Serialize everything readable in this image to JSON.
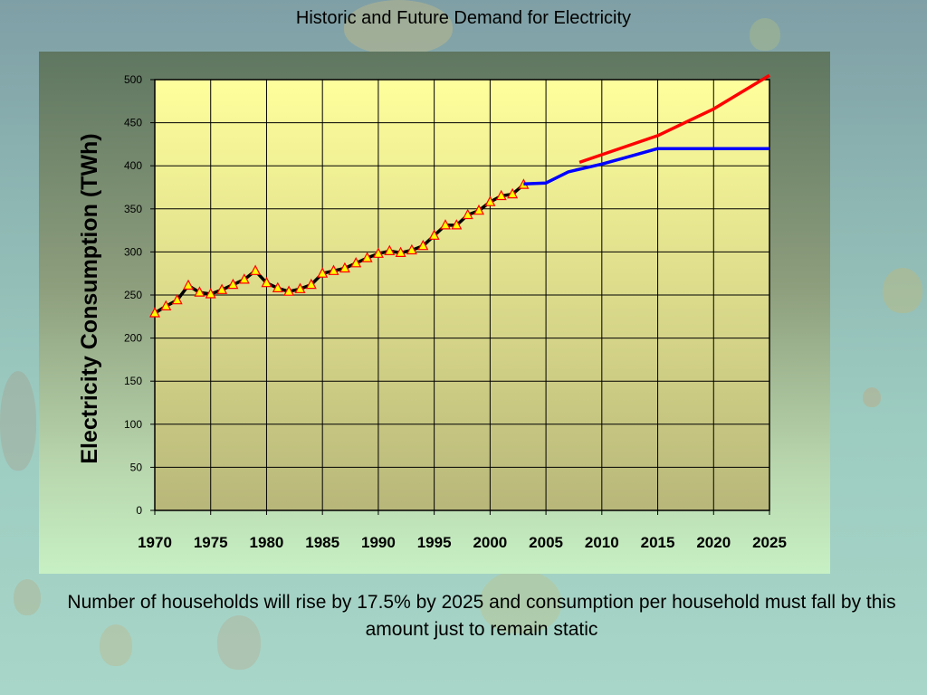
{
  "slide": {
    "title": "Historic and Future Demand for Electricity",
    "caption": "Number of households will rise by 17.5% by 2025 and consumption per household must fall by this amount just to remain static"
  },
  "chart_data": {
    "type": "line",
    "title": "",
    "xlabel": "",
    "ylabel": "Electricity Consumption (TWh)",
    "xlim": [
      1970,
      2025
    ],
    "ylim": [
      0,
      500
    ],
    "x_ticks": [
      1970,
      1975,
      1980,
      1985,
      1990,
      1995,
      2000,
      2005,
      2010,
      2015,
      2020,
      2025
    ],
    "y_ticks": [
      0,
      50,
      100,
      150,
      200,
      250,
      300,
      350,
      400,
      450,
      500
    ],
    "grid": true,
    "legend": "none",
    "series": [
      {
        "color": "#000000",
        "marker": "triangle",
        "marker_color": "#ffff00",
        "marker_edge": "#ff0000",
        "x": [
          1970,
          1971,
          1972,
          1973,
          1974,
          1975,
          1976,
          1977,
          1978,
          1979,
          1980,
          1981,
          1982,
          1983,
          1984,
          1985,
          1986,
          1987,
          1988,
          1989,
          1990,
          1991,
          1992,
          1993,
          1994,
          1995,
          1996,
          1997,
          1998,
          1999,
          2000,
          2001,
          2002,
          2003
        ],
        "values": [
          229,
          237,
          244,
          261,
          253,
          251,
          256,
          262,
          268,
          278,
          264,
          258,
          254,
          257,
          262,
          275,
          278,
          281,
          287,
          293,
          298,
          301,
          299,
          302,
          307,
          319,
          331,
          331,
          343,
          348,
          358,
          365,
          367,
          378
        ]
      },
      {
        "color": "#0000ff",
        "x": [
          2003,
          2005,
          2007,
          2010,
          2012,
          2015,
          2020,
          2025
        ],
        "values": [
          379,
          380,
          393,
          402,
          409,
          420,
          420,
          420
        ]
      },
      {
        "color": "#ff0000",
        "x": [
          2008,
          2015,
          2020,
          2025
        ],
        "values": [
          404,
          435,
          466,
          505
        ]
      }
    ]
  }
}
